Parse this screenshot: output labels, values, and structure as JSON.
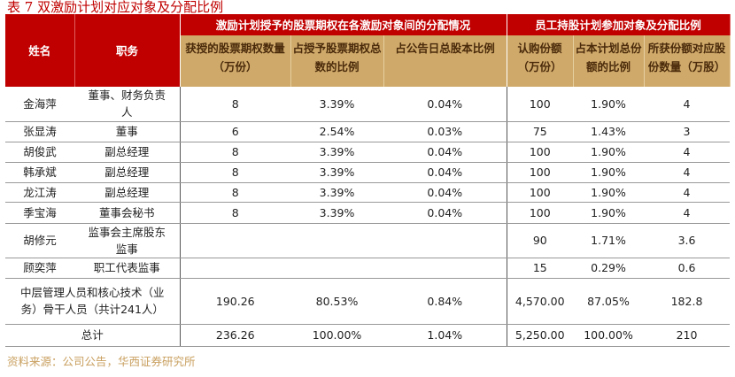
{
  "title": "表 7 双激励计划对应对象及分配比例",
  "headers": {
    "name": "姓名",
    "position": "职务",
    "group1": "激励计划授予的股票期权在各激励对象间的分配情况",
    "group2": "员工持股计划参加对象及分配比例",
    "c1": "获授的股票期权数量（万份）",
    "c2": "占授予股票期权总数的比例",
    "c3": "占公告日总股本比例",
    "c4": "认购份额（万份）",
    "c5": "占本计划总份额的比例",
    "c6": "所获份额对应股份数量（万股）"
  },
  "rows": [
    [
      "金海萍",
      "董事、财务负责人",
      "8",
      "3.39%",
      "0.04%",
      "100",
      "1.90%",
      "4"
    ],
    [
      "张显涛",
      "董事",
      "6",
      "2.54%",
      "0.03%",
      "75",
      "1.43%",
      "3"
    ],
    [
      "胡俊武",
      "副总经理",
      "8",
      "3.39%",
      "0.04%",
      "100",
      "1.90%",
      "4"
    ],
    [
      "韩承斌",
      "副总经理",
      "8",
      "3.39%",
      "0.04%",
      "100",
      "1.90%",
      "4"
    ],
    [
      "龙江涛",
      "副总经理",
      "8",
      "3.39%",
      "0.04%",
      "100",
      "1.90%",
      "4"
    ],
    [
      "季宝海",
      "董事会秘书",
      "8",
      "3.39%",
      "0.04%",
      "100",
      "1.90%",
      "4"
    ],
    [
      "胡修元",
      "监事会主席股东监事",
      "",
      "",
      "",
      "90",
      "1.71%",
      "3.6"
    ],
    [
      "顾奕萍",
      "职工代表监事",
      "",
      "",
      "",
      "15",
      "0.29%",
      "0.6"
    ]
  ],
  "mid": {
    "label": "中层管理人员和核心技术（业务）骨干人员（共计241人）",
    "values": [
      "190.26",
      "80.53%",
      "0.84%",
      "4,570.00",
      "87.05%",
      "182.8"
    ]
  },
  "total": {
    "label": "总计",
    "values": [
      "236.26",
      "100.00%",
      "1.04%",
      "5,250.00",
      "100.00%",
      "210"
    ]
  },
  "source": "资料来源：公司公告，华西证券研究所"
}
